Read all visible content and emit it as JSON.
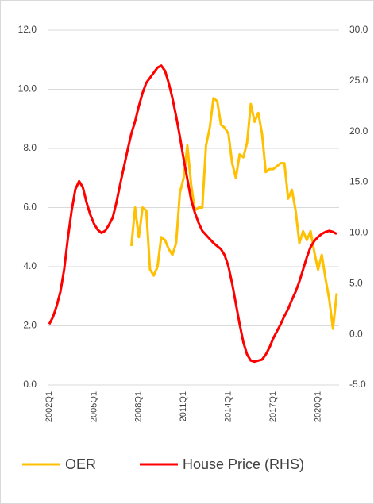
{
  "chart_data": {
    "type": "line",
    "categories": [
      "2002Q1",
      null,
      null,
      null,
      null,
      null,
      null,
      null,
      null,
      null,
      null,
      null,
      "2005Q1",
      null,
      null,
      null,
      null,
      null,
      null,
      null,
      null,
      null,
      null,
      null,
      "2008Q1",
      null,
      null,
      null,
      null,
      null,
      null,
      null,
      null,
      null,
      null,
      null,
      "2011Q1",
      null,
      null,
      null,
      null,
      null,
      null,
      null,
      null,
      null,
      null,
      null,
      "2014Q1",
      null,
      null,
      null,
      null,
      null,
      null,
      null,
      null,
      null,
      null,
      null,
      "2017Q1",
      null,
      null,
      null,
      null,
      null,
      null,
      null,
      null,
      null,
      null,
      null,
      "2020Q1",
      null,
      null,
      null,
      null,
      null
    ],
    "series": [
      {
        "name": "OER",
        "color": "#ffc000",
        "axis": "y",
        "values": [
          null,
          null,
          null,
          null,
          null,
          null,
          null,
          null,
          null,
          null,
          null,
          null,
          null,
          null,
          null,
          null,
          null,
          null,
          null,
          null,
          null,
          null,
          4.7,
          6.0,
          5.0,
          6.0,
          5.9,
          3.9,
          3.7,
          4.0,
          5.0,
          4.9,
          4.6,
          4.4,
          4.8,
          6.5,
          7.0,
          8.1,
          6.8,
          5.9,
          6.0,
          6.0,
          8.1,
          8.7,
          9.7,
          9.6,
          8.8,
          8.7,
          8.5,
          7.5,
          7.0,
          7.8,
          7.7,
          8.2,
          9.5,
          8.9,
          9.2,
          8.5,
          7.2,
          7.3,
          7.3,
          7.4,
          7.5,
          7.5,
          6.3,
          6.6,
          5.9,
          4.8,
          5.2,
          4.9,
          5.2,
          4.5,
          3.9,
          4.4,
          3.6,
          2.9,
          1.9,
          3.1
        ]
      },
      {
        "name": "House Price (RHS)",
        "color": "#ff0000",
        "axis": "y2",
        "values": [
          1.0,
          1.7,
          2.8,
          4.2,
          6.4,
          9.5,
          12.2,
          14.3,
          15.1,
          14.5,
          13.0,
          11.8,
          10.9,
          10.3,
          10.0,
          10.2,
          10.8,
          11.5,
          13.0,
          14.8,
          16.5,
          18.2,
          19.8,
          21.0,
          22.5,
          23.8,
          24.8,
          25.3,
          25.8,
          26.3,
          26.5,
          26.0,
          24.8,
          23.3,
          21.5,
          19.5,
          17.3,
          15.3,
          13.3,
          12.0,
          11.0,
          10.2,
          9.8,
          9.4,
          9.0,
          8.7,
          8.4,
          7.8,
          6.7,
          5.0,
          3.0,
          1.0,
          -0.8,
          -2.0,
          -2.6,
          -2.7,
          -2.6,
          -2.5,
          -2.0,
          -1.3,
          -0.4,
          0.3,
          1.0,
          1.8,
          2.5,
          3.4,
          4.2,
          5.2,
          6.4,
          7.6,
          8.6,
          9.2,
          9.6,
          9.9,
          10.1,
          10.2,
          10.1,
          9.9
        ]
      }
    ],
    "ylim": [
      0,
      12
    ],
    "yticks": [
      {
        "value": 0,
        "label": "0.0"
      },
      {
        "value": 2,
        "label": "2.0"
      },
      {
        "value": 4,
        "label": "4.0"
      },
      {
        "value": 6,
        "label": "6.0"
      },
      {
        "value": 8,
        "label": "8.0"
      },
      {
        "value": 10,
        "label": "10.0"
      },
      {
        "value": 12,
        "label": "12.0"
      }
    ],
    "y2lim": [
      -5,
      30
    ],
    "y2ticks": [
      {
        "value": -5,
        "label": "-5.0"
      },
      {
        "value": 0,
        "label": "0.0"
      },
      {
        "value": 5,
        "label": "5.0"
      },
      {
        "value": 10,
        "label": "10.0"
      },
      {
        "value": 15,
        "label": "15.0"
      },
      {
        "value": 20,
        "label": "20.0"
      },
      {
        "value": 25,
        "label": "25.0"
      },
      {
        "value": 30,
        "label": "30.0"
      }
    ],
    "grid": true
  }
}
